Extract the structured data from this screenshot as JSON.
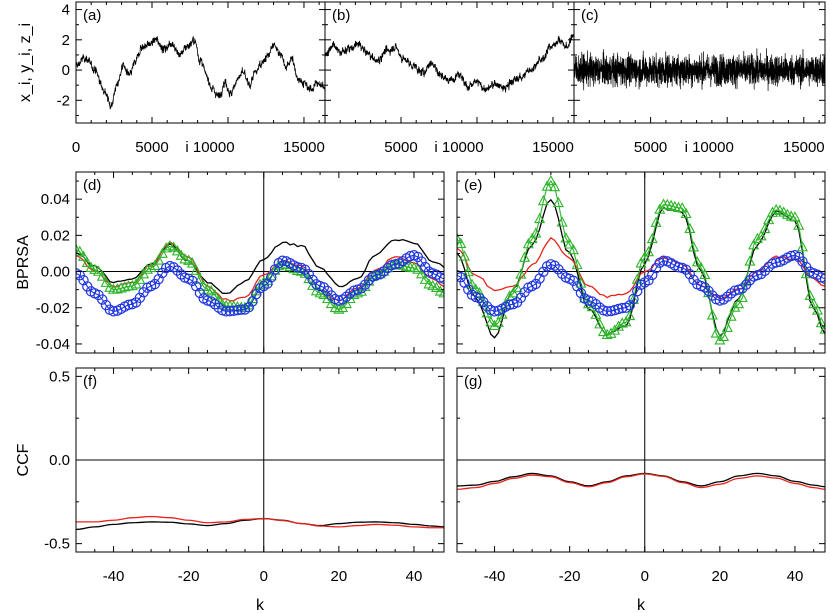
{
  "chart_data": [
    {
      "type": "line",
      "panel": "a",
      "label": "(a)",
      "ylabel": "x_i, y_i, z_i",
      "xlabel": "i",
      "xlim": [
        0,
        16384
      ],
      "ylim": [
        -3.5,
        4.5
      ],
      "yticks": [
        4,
        2,
        0,
        -2
      ],
      "xticks": [
        0,
        5000,
        10000,
        15000
      ],
      "xtick_labels": [
        "0",
        "5000",
        "i 10000",
        "15000"
      ],
      "series": [
        {
          "kind": "trace",
          "color": "#000000",
          "values": [
            [
              0,
              0.3
            ],
            [
              600,
              0.8
            ],
            [
              1200,
              0.1
            ],
            [
              1800,
              -1.2
            ],
            [
              2300,
              -2.3
            ],
            [
              2700,
              -1.0
            ],
            [
              3100,
              0.3
            ],
            [
              3500,
              -0.4
            ],
            [
              3900,
              0.5
            ],
            [
              4300,
              1.5
            ],
            [
              4800,
              1.7
            ],
            [
              5300,
              2.0
            ],
            [
              5800,
              1.4
            ],
            [
              6300,
              1.8
            ],
            [
              6800,
              1.0
            ],
            [
              7300,
              1.6
            ],
            [
              7800,
              1.9
            ],
            [
              8200,
              0.6
            ],
            [
              8600,
              -0.4
            ],
            [
              9000,
              -1.3
            ],
            [
              9400,
              -1.7
            ],
            [
              9800,
              -0.8
            ],
            [
              10200,
              -1.6
            ],
            [
              10600,
              -0.6
            ],
            [
              11000,
              -0.2
            ],
            [
              11400,
              -1.0
            ],
            [
              11800,
              -0.2
            ],
            [
              12200,
              0.5
            ],
            [
              12600,
              0.9
            ],
            [
              13000,
              1.6
            ],
            [
              13400,
              1.2
            ],
            [
              13800,
              0.2
            ],
            [
              14200,
              0.7
            ],
            [
              14600,
              -0.5
            ],
            [
              15000,
              -0.9
            ],
            [
              15400,
              -1.3
            ],
            [
              15800,
              -0.9
            ],
            [
              16384,
              -1.1
            ]
          ]
        }
      ]
    },
    {
      "type": "line",
      "panel": "b",
      "label": "(b)",
      "xlabel": "i",
      "xlim": [
        0,
        16384
      ],
      "ylim": [
        -3.5,
        4.5
      ],
      "xticks": [
        5000,
        10000,
        15000
      ],
      "xtick_labels": [
        "5000",
        "i 10000",
        "15000"
      ],
      "series": [
        {
          "kind": "trace",
          "color": "#000000",
          "values": [
            [
              0,
              1.0
            ],
            [
              500,
              1.6
            ],
            [
              1000,
              1.2
            ],
            [
              1600,
              1.4
            ],
            [
              2200,
              1.7
            ],
            [
              2800,
              1.1
            ],
            [
              3400,
              0.6
            ],
            [
              4000,
              1.2
            ],
            [
              4600,
              1.5
            ],
            [
              5200,
              0.7
            ],
            [
              5800,
              0.3
            ],
            [
              6400,
              -0.2
            ],
            [
              7000,
              0.5
            ],
            [
              7600,
              -0.3
            ],
            [
              8200,
              -0.7
            ],
            [
              8800,
              -0.2
            ],
            [
              9400,
              -1.1
            ],
            [
              10000,
              -0.8
            ],
            [
              10600,
              -1.3
            ],
            [
              11200,
              -0.9
            ],
            [
              11800,
              -1.2
            ],
            [
              12400,
              -0.7
            ],
            [
              13000,
              -0.4
            ],
            [
              13600,
              0.1
            ],
            [
              14200,
              0.6
            ],
            [
              14800,
              1.5
            ],
            [
              15400,
              2.0
            ],
            [
              15900,
              1.5
            ],
            [
              16384,
              2.4
            ]
          ]
        }
      ]
    },
    {
      "type": "line",
      "panel": "c",
      "label": "(c)",
      "xlabel": "i",
      "xlim": [
        0,
        16384
      ],
      "ylim": [
        -3.5,
        4.5
      ],
      "xticks": [
        5000,
        10000,
        15000
      ],
      "xtick_labels": [
        "5000",
        "i 10000",
        "15000"
      ],
      "series": [
        {
          "kind": "noise",
          "color": "#000000",
          "mean": 0.0,
          "amplitude": 1.1,
          "peak_max": 3.2,
          "peak_min": -2.9
        }
      ]
    },
    {
      "type": "line",
      "panel": "d",
      "label": "(d)",
      "ylabel": "BPRSA",
      "xlim": [
        -50,
        48
      ],
      "ylim": [
        -0.045,
        0.055
      ],
      "yticks": [
        0.04,
        0.02,
        0.0,
        -0.02,
        -0.04
      ],
      "ytick_labels": [
        "0.04",
        "0.02",
        "0.00",
        "-0.02",
        "-0.04"
      ],
      "zero_lines": true,
      "series": [
        {
          "color": "#000000",
          "marker": "none",
          "x": [
            -50,
            -45,
            -40,
            -35,
            -30,
            -25,
            -20,
            -15,
            -10,
            -5,
            0,
            5,
            10,
            15,
            20,
            25,
            30,
            35,
            40,
            45,
            48
          ],
          "values": [
            0.01,
            0.003,
            -0.006,
            -0.004,
            0.004,
            0.015,
            0.006,
            -0.006,
            -0.012,
            -0.006,
            0.007,
            0.016,
            0.014,
            0.002,
            -0.008,
            -0.004,
            0.01,
            0.018,
            0.016,
            0.006,
            0.003
          ]
        },
        {
          "color": "#e8231c",
          "marker": "none",
          "x": [
            -50,
            -45,
            -40,
            -35,
            -30,
            -25,
            -20,
            -15,
            -10,
            -5,
            0,
            5,
            10,
            15,
            20,
            25,
            30,
            35,
            40,
            45,
            48
          ],
          "values": [
            0.009,
            0.0,
            -0.008,
            -0.006,
            0.003,
            0.016,
            0.008,
            -0.008,
            -0.016,
            -0.014,
            -0.002,
            0.006,
            0.003,
            -0.01,
            -0.016,
            -0.009,
            0.001,
            0.008,
            0.005,
            -0.004,
            -0.008
          ]
        },
        {
          "color": "#2db52a",
          "marker": "triangle",
          "x": [
            -50,
            -45,
            -40,
            -35,
            -30,
            -25,
            -20,
            -15,
            -10,
            -5,
            0,
            5,
            10,
            15,
            20,
            25,
            30,
            35,
            40,
            45,
            48
          ],
          "values": [
            0.012,
            0.001,
            -0.01,
            -0.008,
            0.002,
            0.014,
            0.006,
            -0.01,
            -0.019,
            -0.02,
            -0.006,
            0.004,
            0.0,
            -0.012,
            -0.021,
            -0.012,
            -0.002,
            0.004,
            0.002,
            -0.008,
            -0.012
          ]
        },
        {
          "color": "#1f36e0",
          "marker": "circle",
          "x": [
            -50,
            -45,
            -40,
            -35,
            -30,
            -25,
            -20,
            -15,
            -10,
            -5,
            0,
            5,
            10,
            15,
            20,
            25,
            30,
            35,
            40,
            45,
            48
          ],
          "values": [
            -0.001,
            -0.012,
            -0.022,
            -0.018,
            -0.008,
            0.003,
            -0.004,
            -0.016,
            -0.022,
            -0.021,
            -0.008,
            0.006,
            0.002,
            -0.008,
            -0.016,
            -0.01,
            -0.002,
            0.004,
            0.009,
            -0.001,
            -0.004
          ]
        }
      ]
    },
    {
      "type": "line",
      "panel": "e",
      "label": "(e)",
      "xlim": [
        -50,
        48
      ],
      "ylim": [
        -0.045,
        0.055
      ],
      "zero_lines": true,
      "series": [
        {
          "color": "#000000",
          "marker": "none",
          "x": [
            -50,
            -45,
            -40,
            -35,
            -30,
            -25,
            -20,
            -15,
            -10,
            -5,
            0,
            5,
            10,
            15,
            20,
            25,
            30,
            35,
            40,
            45,
            48
          ],
          "values": [
            0.01,
            -0.015,
            -0.036,
            -0.01,
            0.015,
            0.04,
            0.01,
            -0.02,
            -0.035,
            -0.03,
            0.005,
            0.035,
            0.033,
            0.0,
            -0.035,
            -0.015,
            0.015,
            0.033,
            0.028,
            -0.02,
            -0.035
          ]
        },
        {
          "color": "#e8231c",
          "marker": "none",
          "x": [
            -50,
            -45,
            -40,
            -35,
            -30,
            -25,
            -20,
            -15,
            -10,
            -5,
            0,
            5,
            10,
            15,
            20,
            25,
            30,
            35,
            40,
            45,
            48
          ],
          "values": [
            0.013,
            -0.002,
            -0.01,
            -0.008,
            0.003,
            0.018,
            0.007,
            -0.008,
            -0.014,
            -0.012,
            0.0,
            0.008,
            0.004,
            -0.008,
            -0.015,
            -0.01,
            0.0,
            0.008,
            0.007,
            -0.004,
            -0.008
          ]
        },
        {
          "color": "#2db52a",
          "marker": "triangle",
          "x": [
            -50,
            -45,
            -40,
            -35,
            -30,
            -25,
            -20,
            -15,
            -10,
            -5,
            0,
            5,
            10,
            15,
            20,
            25,
            30,
            35,
            40,
            45,
            48
          ],
          "values": [
            0.018,
            -0.01,
            -0.03,
            -0.012,
            0.018,
            0.05,
            0.015,
            -0.018,
            -0.035,
            -0.028,
            0.008,
            0.037,
            0.035,
            0.002,
            -0.038,
            -0.018,
            0.018,
            0.034,
            0.03,
            -0.018,
            -0.032
          ]
        },
        {
          "color": "#1f36e0",
          "marker": "circle",
          "x": [
            -50,
            -45,
            -40,
            -35,
            -30,
            -25,
            -20,
            -15,
            -10,
            -5,
            0,
            5,
            10,
            15,
            20,
            25,
            30,
            35,
            40,
            45,
            48
          ],
          "values": [
            -0.002,
            -0.014,
            -0.022,
            -0.018,
            -0.008,
            0.004,
            -0.004,
            -0.016,
            -0.022,
            -0.02,
            -0.006,
            0.006,
            0.002,
            -0.008,
            -0.016,
            -0.01,
            -0.002,
            0.005,
            0.009,
            -0.001,
            -0.004
          ]
        }
      ]
    },
    {
      "type": "line",
      "panel": "f",
      "label": "(f)",
      "ylabel": "CCF",
      "xlabel": "k",
      "xlim": [
        -50,
        48
      ],
      "ylim": [
        -0.55,
        0.55
      ],
      "yticks": [
        0.5,
        0.0,
        -0.5
      ],
      "ytick_labels": [
        "0.5",
        "0.0",
        "-0.5"
      ],
      "xticks": [
        -40,
        -20,
        0,
        20,
        40
      ],
      "zero_lines": true,
      "series": [
        {
          "color": "#000000",
          "marker": "none",
          "x": [
            -50,
            -45,
            -40,
            -35,
            -30,
            -25,
            -20,
            -15,
            -10,
            -5,
            0,
            5,
            10,
            15,
            20,
            25,
            30,
            35,
            40,
            45,
            48
          ],
          "values": [
            -0.415,
            -0.4,
            -0.385,
            -0.375,
            -0.37,
            -0.372,
            -0.382,
            -0.392,
            -0.38,
            -0.36,
            -0.35,
            -0.36,
            -0.38,
            -0.392,
            -0.38,
            -0.372,
            -0.37,
            -0.375,
            -0.385,
            -0.395,
            -0.4
          ]
        },
        {
          "color": "#e8231c",
          "marker": "none",
          "x": [
            -50,
            -45,
            -40,
            -35,
            -30,
            -25,
            -20,
            -15,
            -10,
            -5,
            0,
            5,
            10,
            15,
            20,
            25,
            30,
            35,
            40,
            45,
            48
          ],
          "values": [
            -0.37,
            -0.37,
            -0.36,
            -0.345,
            -0.338,
            -0.345,
            -0.36,
            -0.375,
            -0.37,
            -0.355,
            -0.35,
            -0.362,
            -0.38,
            -0.395,
            -0.4,
            -0.392,
            -0.385,
            -0.39,
            -0.4,
            -0.405,
            -0.405
          ]
        }
      ]
    },
    {
      "type": "line",
      "panel": "g",
      "label": "(g)",
      "xlabel": "k",
      "xlim": [
        -50,
        48
      ],
      "ylim": [
        -0.55,
        0.55
      ],
      "xticks": [
        -40,
        -20,
        0,
        20,
        40
      ],
      "zero_lines": true,
      "series": [
        {
          "color": "#000000",
          "marker": "none",
          "x": [
            -50,
            -45,
            -40,
            -35,
            -30,
            -25,
            -20,
            -15,
            -10,
            -5,
            0,
            5,
            10,
            15,
            20,
            25,
            30,
            35,
            40,
            45,
            48
          ],
          "values": [
            -0.155,
            -0.15,
            -0.128,
            -0.1,
            -0.08,
            -0.095,
            -0.13,
            -0.155,
            -0.13,
            -0.095,
            -0.08,
            -0.095,
            -0.13,
            -0.155,
            -0.13,
            -0.095,
            -0.08,
            -0.095,
            -0.128,
            -0.15,
            -0.16
          ]
        },
        {
          "color": "#e8231c",
          "marker": "none",
          "x": [
            -50,
            -45,
            -40,
            -35,
            -30,
            -25,
            -20,
            -15,
            -10,
            -5,
            0,
            5,
            10,
            15,
            20,
            25,
            30,
            35,
            40,
            45,
            48
          ],
          "values": [
            -0.175,
            -0.165,
            -0.14,
            -0.11,
            -0.09,
            -0.1,
            -0.135,
            -0.16,
            -0.135,
            -0.1,
            -0.083,
            -0.098,
            -0.135,
            -0.165,
            -0.145,
            -0.11,
            -0.095,
            -0.108,
            -0.14,
            -0.165,
            -0.175
          ]
        }
      ]
    }
  ]
}
